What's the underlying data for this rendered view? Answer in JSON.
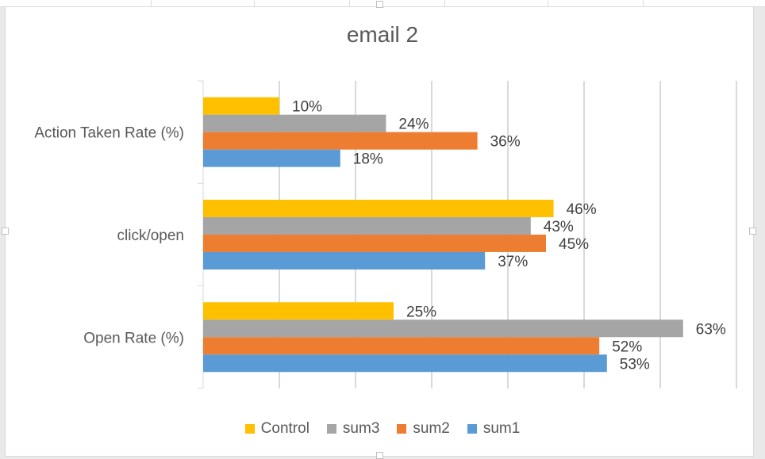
{
  "chart_data": {
    "type": "bar",
    "orientation": "horizontal",
    "title": "email 2",
    "categories": [
      "Action Taken Rate (%)",
      "click/open",
      "Open Rate (%)"
    ],
    "series": [
      {
        "name": "Control",
        "color": "#FFC000",
        "values": [
          10,
          46,
          25
        ],
        "labels": [
          "10%",
          "46%",
          "25%"
        ]
      },
      {
        "name": "sum3",
        "color": "#A5A5A5",
        "values": [
          24,
          43,
          63
        ],
        "labels": [
          "24%",
          "43%",
          "63%"
        ]
      },
      {
        "name": "sum2",
        "color": "#ED7D31",
        "values": [
          36,
          45,
          52
        ],
        "labels": [
          "36%",
          "45%",
          "52%"
        ]
      },
      {
        "name": "sum1",
        "color": "#5B9BD5",
        "values": [
          18,
          37,
          53
        ],
        "labels": [
          "18%",
          "37%",
          "53%"
        ]
      }
    ],
    "xlim": [
      0,
      70
    ],
    "grid": true,
    "legend_position": "bottom",
    "tick_labels_visible": false
  }
}
